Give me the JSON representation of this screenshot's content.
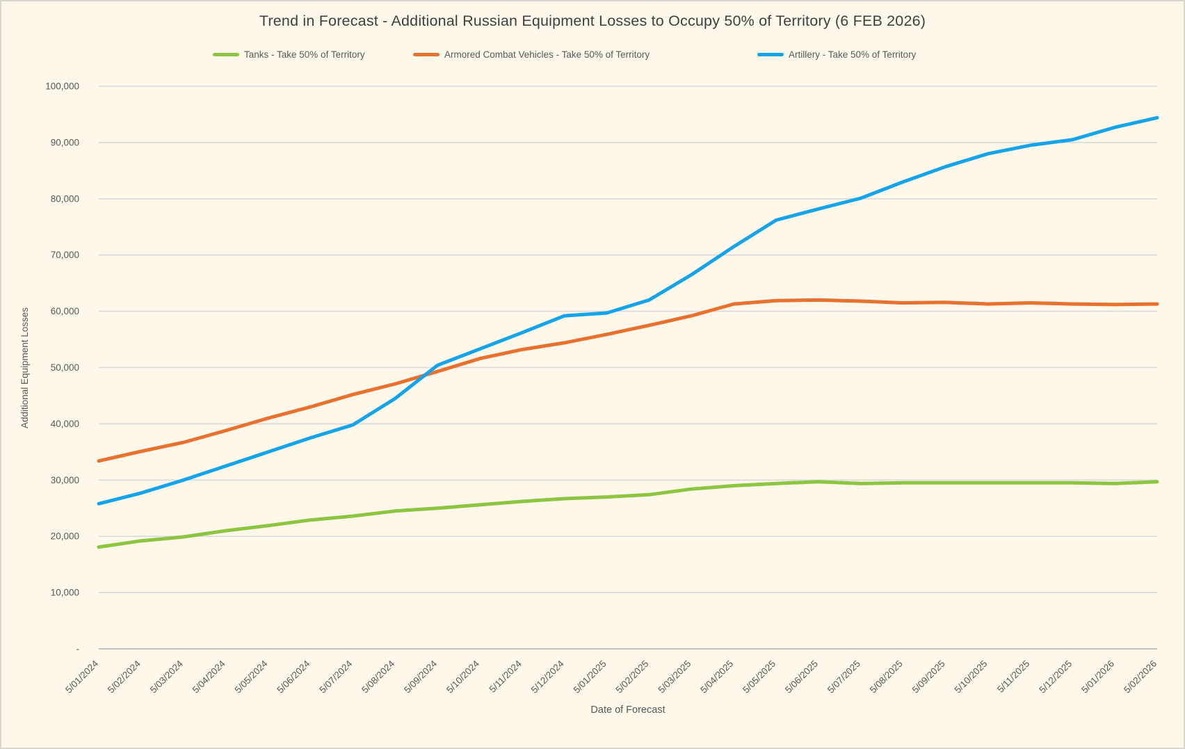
{
  "title": "Trend in Forecast - Additional Russian Equipment Losses to Occupy 50% of Territory (6 FEB 2026)",
  "legend": [
    {
      "label": "Tanks - Take 50% of Territory",
      "color": "#8CC540"
    },
    {
      "label": "Armored Combat Vehicles - Take 50% of Territory",
      "color": "#E8712E"
    },
    {
      "label": "Artillery - Take 50% of Territory",
      "color": "#15A4E8"
    }
  ],
  "axes": {
    "x_title": "Date of Forecast",
    "y_title": "Additional Equipment Losses",
    "y_zero_label": "-"
  },
  "colors": {
    "background": "#FDF8E9",
    "gridline": "#D9D9D9",
    "axis_line": "#C3C3C3",
    "tick_text": "#595959",
    "title_text": "#3F3F3F"
  },
  "chart_data": {
    "type": "line",
    "title": "Trend in Forecast - Additional Russian Equipment Losses to Occupy 50% of Territory (6 FEB 2026)",
    "xlabel": "Date of Forecast",
    "ylabel": "Additional Equipment Losses",
    "ylim": [
      0,
      100000
    ],
    "y_tick_step": 10000,
    "grid": true,
    "legend_position": "top",
    "categories": [
      "5/01/2024",
      "5/02/2024",
      "5/03/2024",
      "5/04/2024",
      "5/05/2024",
      "5/06/2024",
      "5/07/2024",
      "5/08/2024",
      "5/09/2024",
      "5/10/2024",
      "5/11/2024",
      "5/12/2024",
      "5/01/2025",
      "5/02/2025",
      "5/03/2025",
      "5/04/2025",
      "5/05/2025",
      "5/06/2025",
      "5/07/2025",
      "5/08/2025",
      "5/09/2025",
      "5/10/2025",
      "5/11/2025",
      "5/12/2025",
      "5/01/2026",
      "5/02/2026"
    ],
    "series": [
      {
        "name": "Tanks - Take 50% of Territory",
        "color": "#8CC540",
        "values": [
          18100,
          19200,
          19900,
          21000,
          21900,
          22900,
          23600,
          24500,
          25000,
          25600,
          26200,
          26700,
          27000,
          27400,
          28400,
          29000,
          29400,
          29700,
          29400,
          29500,
          29500,
          29500,
          29500,
          29500,
          29400,
          29700
        ]
      },
      {
        "name": "Armored Combat Vehicles - Take 50% of Territory",
        "color": "#E8712E",
        "values": [
          33400,
          35100,
          36700,
          38800,
          41000,
          43000,
          45200,
          47100,
          49300,
          51600,
          53200,
          54400,
          55900,
          57500,
          59200,
          61300,
          61900,
          62000,
          61800,
          61500,
          61600,
          61300,
          61500,
          61300,
          61200,
          61300
        ]
      },
      {
        "name": "Artillery - Take 50% of Territory",
        "color": "#15A4E8",
        "values": [
          25800,
          27700,
          30000,
          32500,
          35000,
          37500,
          39800,
          44500,
          50400,
          53300,
          56200,
          59200,
          59700,
          62000,
          66500,
          71500,
          76200,
          78200,
          80100,
          83000,
          85700,
          88000,
          89500,
          90500,
          92700,
          94400
        ]
      }
    ]
  }
}
